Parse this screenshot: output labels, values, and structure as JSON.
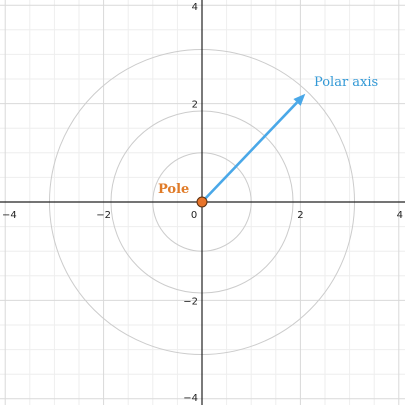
{
  "plane": {
    "x_range": [
      -4,
      4
    ],
    "y_range": [
      -4,
      4
    ],
    "major_step": 2,
    "minor_step": 0.5,
    "x_tick_labels": [
      {
        "value": -4,
        "text": "−4"
      },
      {
        "value": -2,
        "text": "−2"
      },
      {
        "value": 0,
        "text": "0"
      },
      {
        "value": 2,
        "text": "2"
      },
      {
        "value": 4,
        "text": "4"
      }
    ],
    "y_tick_labels": [
      {
        "value": 4,
        "text": "4"
      },
      {
        "value": 2,
        "text": "2"
      },
      {
        "value": -2,
        "text": "−2"
      },
      {
        "value": -4,
        "text": "−4"
      }
    ]
  },
  "circles": [
    1,
    1.85,
    3.1
  ],
  "pole": {
    "label": "Pole",
    "x": 0,
    "y": 0
  },
  "polar_axis": {
    "label": "Polar axis",
    "to": [
      2.1,
      2.2
    ]
  },
  "colors": {
    "grid_minor": "#eeeeee",
    "grid_major": "#d9d9d9",
    "axis": "#222222",
    "circle": "#cccccc",
    "arrow": "#4aa8e8",
    "pole_fill": "#e8742a",
    "pole_stroke": "#5a3010",
    "pole_label": "#e07b28",
    "axis_label": "#3399d6"
  }
}
